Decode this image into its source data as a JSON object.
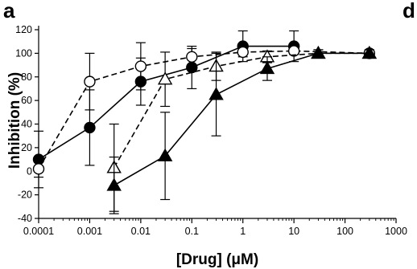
{
  "panel_labels": {
    "left": "a",
    "right": "d"
  },
  "colors": {
    "ink": "#000000",
    "marker_fill_open": "#ffffff",
    "background": "#ffffff"
  },
  "chart_data": {
    "type": "line",
    "title": "",
    "xlabel": "[Drug] (μM)",
    "ylabel": "Inhibition (%)",
    "xscale": "log",
    "xlim": [
      0.0001,
      1000
    ],
    "ylim": [
      -40,
      120
    ],
    "x_ticks": [
      "0.0001",
      "0.001",
      "0.01",
      "0.1",
      "1",
      "10",
      "100",
      "1000"
    ],
    "y_ticks": [
      "120",
      "100",
      "80",
      "60",
      "40",
      "20",
      "0",
      "-20",
      "-40"
    ],
    "grid": false,
    "legend": "none",
    "series": [
      {
        "marker": "filled-circle",
        "line": "solid",
        "x": [
          0.0001,
          0.001,
          0.01,
          0.1,
          1,
          10
        ],
        "y": [
          10,
          37,
          76,
          88,
          106,
          106
        ],
        "err": [
          24,
          32,
          20,
          18,
          13,
          13
        ]
      },
      {
        "marker": "open-circle",
        "line": "dashed",
        "x": [
          0.0001,
          0.001,
          0.01,
          0.1,
          1,
          10,
          300
        ],
        "y": [
          2,
          76,
          89,
          97,
          101,
          102,
          100
        ],
        "err": [
          7,
          24,
          20,
          7,
          4,
          3,
          2
        ]
      },
      {
        "marker": "open-triangle",
        "line": "dashed",
        "x": [
          0.003,
          0.03,
          0.3,
          3,
          30,
          300
        ],
        "y": [
          3,
          78,
          89,
          97,
          100,
          100
        ],
        "err": [
          37,
          23,
          12,
          5,
          3,
          3
        ]
      },
      {
        "marker": "filled-triangle",
        "line": "solid",
        "x": [
          0.003,
          0.03,
          0.3,
          3,
          30,
          300
        ],
        "y": [
          -12,
          13,
          65,
          87,
          100,
          100
        ],
        "err": [
          24,
          37,
          35,
          10,
          3,
          3
        ]
      }
    ]
  }
}
